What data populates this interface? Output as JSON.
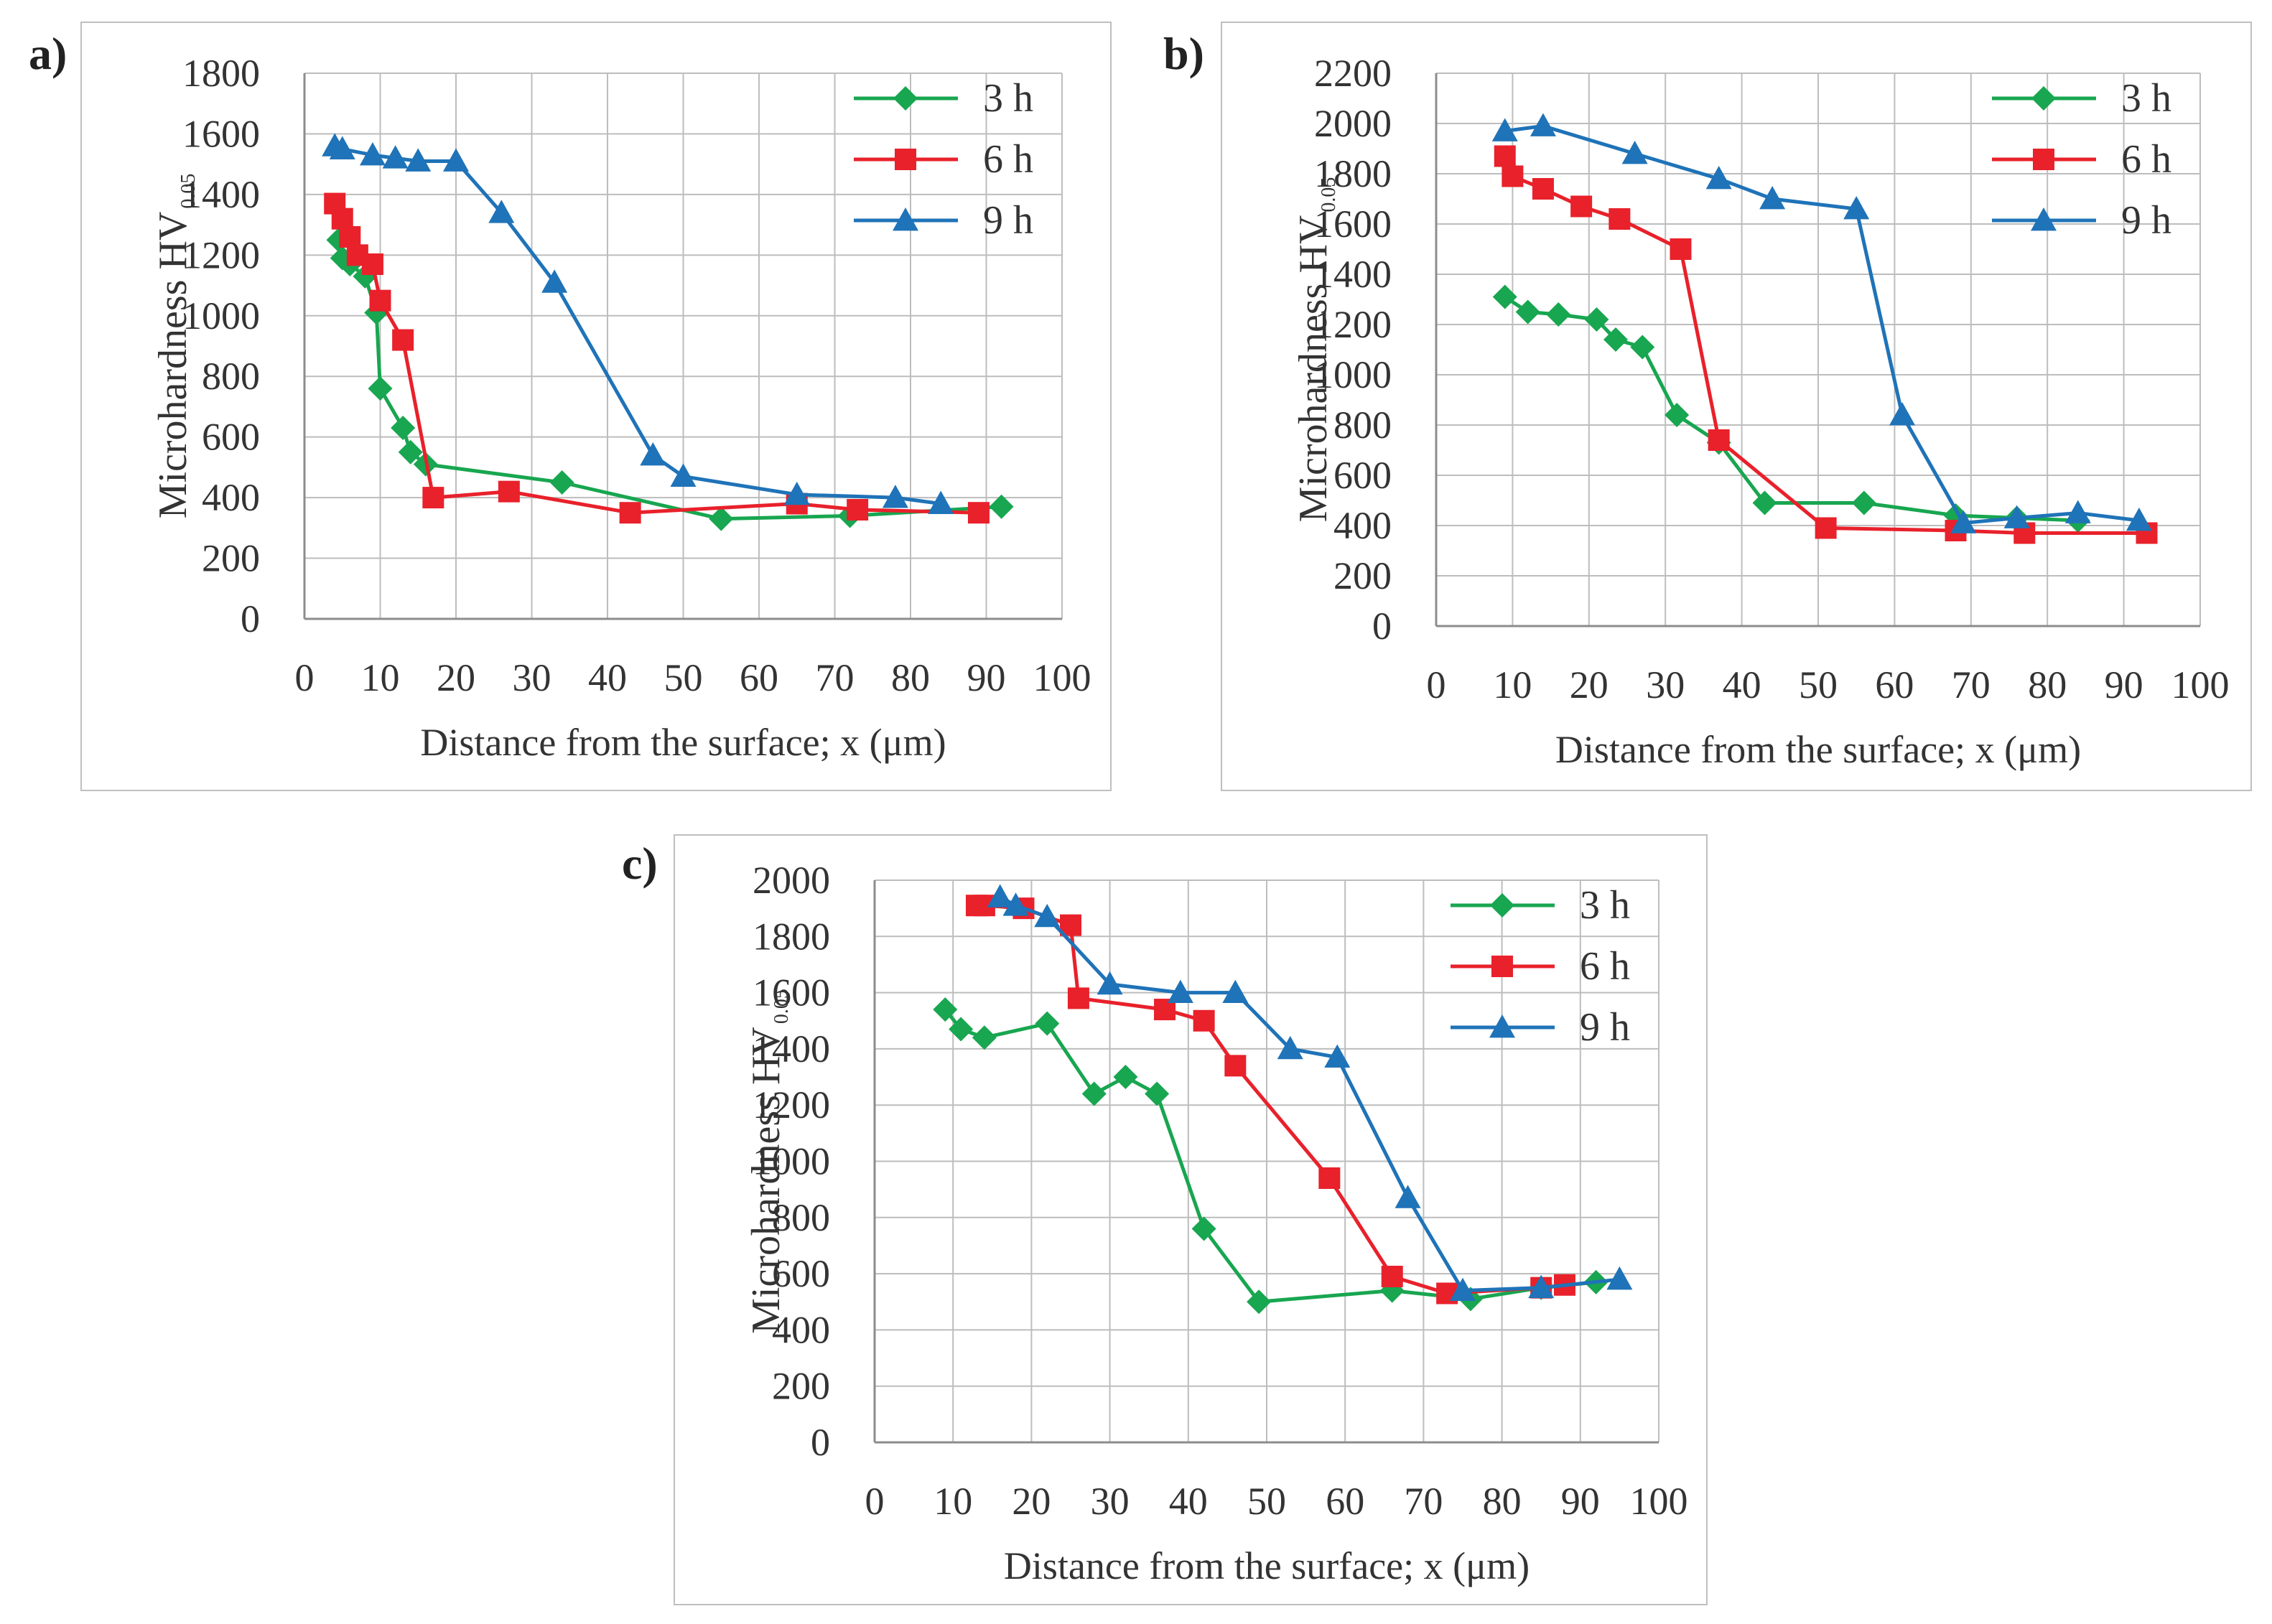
{
  "colors": {
    "3 h": "#18a650",
    "6 h": "#e8212b",
    "9 h": "#1f73b8",
    "grid": "#bdbdbd",
    "axis": "#8c8c8c"
  },
  "chart_data": [
    {
      "panel_label": "a)",
      "type": "line",
      "ylabel": "Microhardness HV",
      "ylabel_sub": "0.05",
      "xlabel": "Distance from the surface; x (μm)",
      "xlim": [
        0,
        100
      ],
      "ylim": [
        0,
        1800
      ],
      "xticks": [
        "0",
        "10",
        "20",
        "30",
        "40",
        "50",
        "60",
        "70",
        "80",
        "90",
        "100"
      ],
      "yticks": [
        "0",
        "200",
        "400",
        "600",
        "800",
        "1000",
        "1200",
        "1400",
        "1600",
        "1800"
      ],
      "legend_position": "top-right",
      "series": [
        {
          "name": "3 h",
          "marker": "diamond",
          "x": [
            4.5,
            5,
            6,
            8,
            9.5,
            10,
            13,
            14,
            16,
            34,
            55,
            72,
            92
          ],
          "y": [
            1250,
            1190,
            1170,
            1130,
            1010,
            760,
            630,
            550,
            510,
            450,
            330,
            340,
            370
          ]
        },
        {
          "name": "6 h",
          "marker": "square",
          "x": [
            4,
            5,
            6,
            7,
            9,
            10,
            13,
            17,
            27,
            43,
            65,
            73,
            89
          ],
          "y": [
            1370,
            1320,
            1260,
            1200,
            1170,
            1050,
            920,
            400,
            420,
            350,
            380,
            360,
            350
          ]
        },
        {
          "name": "9 h",
          "marker": "triangle",
          "x": [
            4,
            5,
            9,
            12,
            15,
            20,
            26,
            33,
            46,
            50,
            65,
            78,
            84
          ],
          "y": [
            1560,
            1550,
            1530,
            1520,
            1510,
            1510,
            1340,
            1110,
            540,
            470,
            410,
            400,
            380
          ]
        }
      ]
    },
    {
      "panel_label": "b)",
      "type": "line",
      "ylabel": "Microhardness HV",
      "ylabel_sub": "0.05",
      "xlabel": "Distance from the surface; x (μm)",
      "xlim": [
        0,
        100
      ],
      "ylim": [
        0,
        2200
      ],
      "xticks": [
        "0",
        "10",
        "20",
        "30",
        "40",
        "50",
        "60",
        "70",
        "80",
        "90",
        "100"
      ],
      "yticks": [
        "0",
        "200",
        "400",
        "600",
        "800",
        "1000",
        "1200",
        "1400",
        "1600",
        "1800",
        "2000",
        "2200"
      ],
      "legend_position": "top-right",
      "series": [
        {
          "name": "3 h",
          "marker": "diamond",
          "x": [
            9,
            12,
            16,
            21,
            23.5,
            27,
            31.5,
            37,
            43,
            56,
            68,
            76,
            84
          ],
          "y": [
            1310,
            1250,
            1240,
            1220,
            1140,
            1110,
            840,
            730,
            490,
            490,
            440,
            430,
            420
          ]
        },
        {
          "name": "6 h",
          "marker": "square",
          "x": [
            9,
            10,
            14,
            19,
            24,
            32,
            37,
            51,
            68,
            77,
            93
          ],
          "y": [
            1870,
            1790,
            1740,
            1670,
            1620,
            1500,
            740,
            390,
            380,
            370,
            370
          ]
        },
        {
          "name": "9 h",
          "marker": "triangle",
          "x": [
            9,
            14,
            26,
            37,
            44,
            55,
            61,
            69,
            76,
            84,
            92
          ],
          "y": [
            1970,
            1990,
            1880,
            1780,
            1700,
            1660,
            840,
            410,
            430,
            450,
            420
          ]
        }
      ]
    },
    {
      "panel_label": "c)",
      "type": "line",
      "ylabel": "Microhardness HV",
      "ylabel_sub": "0.05",
      "xlabel": "Distance from the surface; x (μm)",
      "xlim": [
        0,
        100
      ],
      "ylim": [
        0,
        2000
      ],
      "xticks": [
        "0",
        "10",
        "20",
        "30",
        "40",
        "50",
        "60",
        "70",
        "80",
        "90",
        "100"
      ],
      "yticks": [
        "0",
        "200",
        "400",
        "600",
        "800",
        "1000",
        "1200",
        "1400",
        "1600",
        "1800",
        "2000"
      ],
      "legend_position": "top-right",
      "series": [
        {
          "name": "3 h",
          "marker": "diamond",
          "x": [
            9,
            11,
            14,
            22,
            28,
            32,
            36,
            42,
            49,
            66,
            76,
            85,
            92
          ],
          "y": [
            1540,
            1470,
            1440,
            1490,
            1240,
            1300,
            1240,
            760,
            500,
            540,
            510,
            550,
            570
          ]
        },
        {
          "name": "6 h",
          "marker": "square",
          "x": [
            13,
            14,
            19,
            25,
            26,
            37,
            42,
            46,
            58,
            66,
            73,
            85,
            88
          ],
          "y": [
            1910,
            1910,
            1900,
            1840,
            1580,
            1540,
            1500,
            1340,
            940,
            590,
            530,
            550,
            560
          ]
        },
        {
          "name": "9 h",
          "marker": "triangle",
          "x": [
            16,
            18,
            22,
            30,
            39,
            46,
            53,
            59,
            68,
            75,
            85,
            95
          ],
          "y": [
            1940,
            1910,
            1870,
            1630,
            1600,
            1600,
            1400,
            1370,
            870,
            540,
            550,
            580
          ]
        }
      ]
    }
  ]
}
